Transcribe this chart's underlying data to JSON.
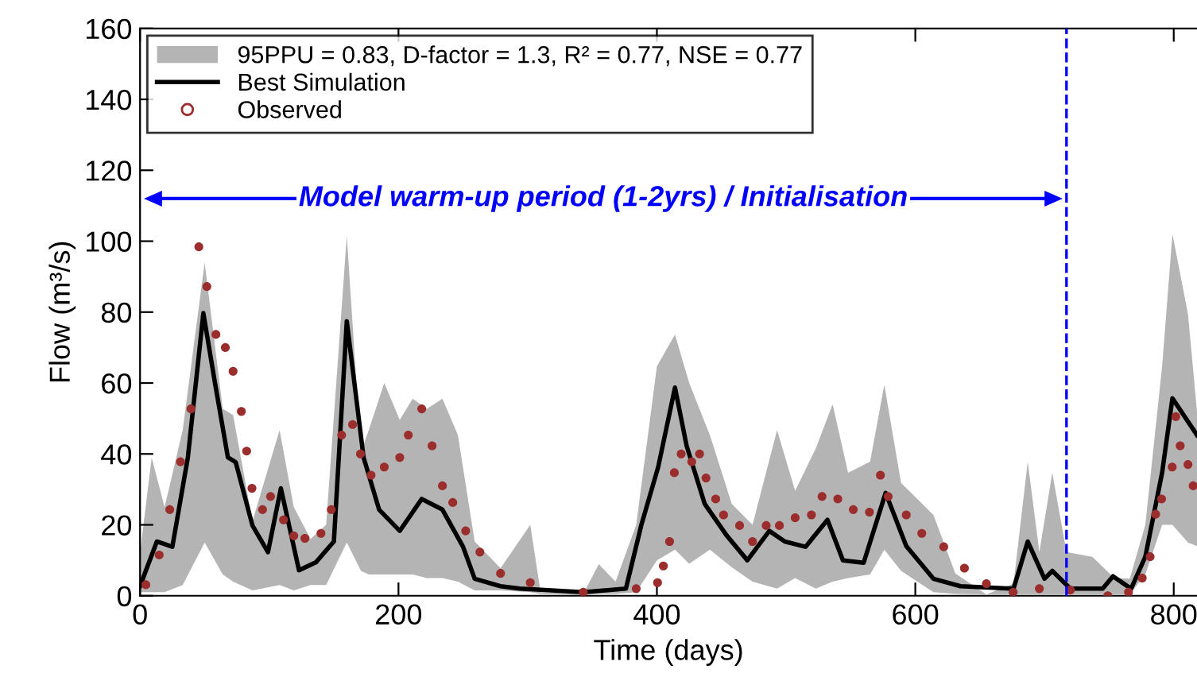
{
  "chart_data": {
    "type": "line",
    "xlabel": "Time (days)",
    "ylabel": "Flow (m³/s)",
    "xlim": [
      0,
      818
    ],
    "xticks": [
      0,
      200,
      400,
      600,
      800
    ],
    "ylim": [
      0,
      160
    ],
    "yticks": [
      0,
      20,
      40,
      60,
      80,
      100,
      120,
      140,
      160
    ],
    "grid": false,
    "legend": "top left",
    "series": [
      {
        "name": "95PPU = 0.83, D-factor = 1.3, R² = 0.77, NSE = 0.77",
        "type": "area",
        "color": "#b4b4b4",
        "x": [
          0,
          9,
          19,
          33,
          50,
          64,
          72,
          87,
          108,
          119,
          132,
          144,
          160,
          171,
          177,
          189,
          201,
          211,
          222,
          234,
          246,
          259,
          279,
          302,
          310,
          343,
          355,
          368,
          384,
          400,
          414,
          425,
          441,
          458,
          474,
          493,
          507,
          523,
          536,
          548,
          565,
          576,
          589,
          614,
          631,
          655,
          676,
          687,
          696,
          706,
          717,
          737,
          754,
          766,
          778,
          791,
          799,
          811,
          818
        ],
        "upper": [
          12,
          39,
          25,
          46.7,
          94,
          52.7,
          51,
          21,
          46.7,
          25,
          16,
          20,
          101.5,
          40.5,
          46.7,
          60,
          49.6,
          55.6,
          52.7,
          55.6,
          45.3,
          15.3,
          7.8,
          20,
          1,
          0.5,
          8.9,
          4,
          20,
          64.7,
          73.7,
          60,
          45.3,
          25.9,
          20,
          46.7,
          29.6,
          41.6,
          54,
          34.7,
          37.8,
          59.5,
          31.8,
          22.8,
          6.3,
          0.4,
          3.4,
          37.8,
          12.3,
          34.7,
          12.3,
          11,
          5,
          4.8,
          20,
          64.7,
          102,
          79.5,
          52
        ],
        "values": [
          null,
          null,
          null,
          null,
          null,
          null,
          null,
          null,
          null,
          null,
          null,
          null,
          null,
          null,
          null,
          null,
          null,
          null,
          null,
          null,
          null,
          null,
          null,
          null,
          null,
          null,
          null,
          null,
          null,
          null,
          null,
          null,
          null,
          null,
          null,
          null,
          null,
          null,
          null,
          null,
          null,
          null,
          null,
          null,
          null,
          null,
          null,
          null,
          null,
          null,
          null,
          null,
          null,
          null,
          null,
          null,
          null,
          null,
          null
        ],
        "lower": [
          1,
          1,
          1,
          3,
          15,
          6,
          4,
          1.5,
          3,
          1.5,
          3,
          3,
          15,
          7,
          6,
          6,
          6,
          6,
          5,
          5,
          4,
          1.5,
          1.5,
          1,
          0.5,
          0.3,
          0.5,
          0.5,
          1,
          10,
          13,
          9,
          13,
          8,
          4,
          2,
          5,
          2,
          4,
          5,
          6,
          13,
          7,
          1,
          0.5,
          0.4,
          0.4,
          0.4,
          0.4,
          0.4,
          0.4,
          0.4,
          0.4,
          0.4,
          6,
          20,
          20,
          15,
          14
        ]
      },
      {
        "name": "Best Simulation",
        "color": "#000000",
        "marker": "none",
        "line_style": "solid",
        "x": [
          0,
          13,
          25,
          37,
          49,
          58,
          68,
          74,
          87,
          99,
          109,
          123,
          136,
          150,
          160,
          173,
          185,
          201,
          218,
          234,
          250,
          259,
          279,
          294,
          343,
          376,
          388,
          401,
          414,
          423,
          437,
          454,
          470,
          487,
          499,
          515,
          532,
          544,
          560,
          577,
          593,
          614,
          635,
          676,
          687,
          700,
          706,
          720,
          745,
          753,
          767,
          778,
          791,
          799,
          818
        ],
        "values": [
          2.7,
          15.3,
          13.8,
          39,
          79.7,
          60,
          39,
          37.7,
          19.8,
          12.3,
          30.3,
          7.2,
          9.4,
          15.3,
          77.4,
          39,
          24.3,
          18.3,
          27.3,
          24.3,
          13.8,
          4.8,
          2.7,
          2,
          1,
          2,
          20,
          36.3,
          58.7,
          42.3,
          25.9,
          17,
          10,
          18.3,
          15.3,
          13.8,
          21.4,
          10,
          9.3,
          29,
          14,
          4.8,
          2.7,
          2,
          15.3,
          4.8,
          7,
          2,
          2,
          5.5,
          2,
          11,
          34.7,
          55.7,
          45.3
        ]
      },
      {
        "name": "Observed",
        "type": "scatter",
        "color": "#9b2d2d",
        "marker": "circle",
        "x": [
          4.5,
          14.8,
          23,
          31.3,
          39.4,
          45.5,
          51.7,
          58.7,
          66,
          72,
          78.4,
          82.5,
          86.6,
          94.8,
          101,
          111,
          119,
          127.6,
          140,
          148,
          156,
          164.5,
          170.6,
          178.8,
          189,
          201,
          207.6,
          218,
          226,
          234,
          242,
          252,
          263,
          279,
          302,
          343,
          384,
          400.5,
          405,
          409.8,
          413.5,
          418.8,
          427,
          433,
          438,
          445.5,
          451.6,
          464,
          474,
          484.6,
          494.8,
          507,
          519.6,
          527.8,
          540,
          552,
          564.5,
          573,
          579,
          593,
          605,
          622,
          638,
          655,
          675.7,
          696,
          720,
          749,
          765,
          775.6,
          781.7,
          786,
          790.6,
          798.8,
          801.6,
          805,
          811,
          815
        ],
        "values": [
          3.1,
          11.5,
          24.3,
          37.8,
          52.7,
          98.4,
          87.2,
          73.7,
          70,
          63.3,
          52,
          40.8,
          30.3,
          24.3,
          28,
          21.4,
          16.9,
          16.2,
          17.6,
          24.3,
          45.3,
          48.3,
          40,
          34,
          36.3,
          39,
          45.3,
          52.7,
          42.3,
          31,
          26.3,
          18.3,
          12.3,
          6.3,
          3.7,
          1,
          2,
          3.7,
          8.4,
          15.3,
          34.7,
          40,
          37.8,
          40,
          33.2,
          27.3,
          22.8,
          19.8,
          15.3,
          19.8,
          19.8,
          22,
          22.8,
          28,
          27.3,
          24.3,
          23.6,
          34,
          28,
          22.8,
          17.6,
          13.8,
          7.8,
          3.4,
          1,
          2,
          1.6,
          0,
          1,
          5,
          11,
          23,
          27.3,
          36.3,
          50.5,
          42.3,
          37,
          31
        ]
      }
    ],
    "ref_lines": [
      {
        "axis": "x",
        "value": 717,
        "color": "#0000ff",
        "line_style": "dashed"
      }
    ],
    "annotations": [
      "Model warm-up period (1-2yrs) / Initialisation"
    ]
  }
}
